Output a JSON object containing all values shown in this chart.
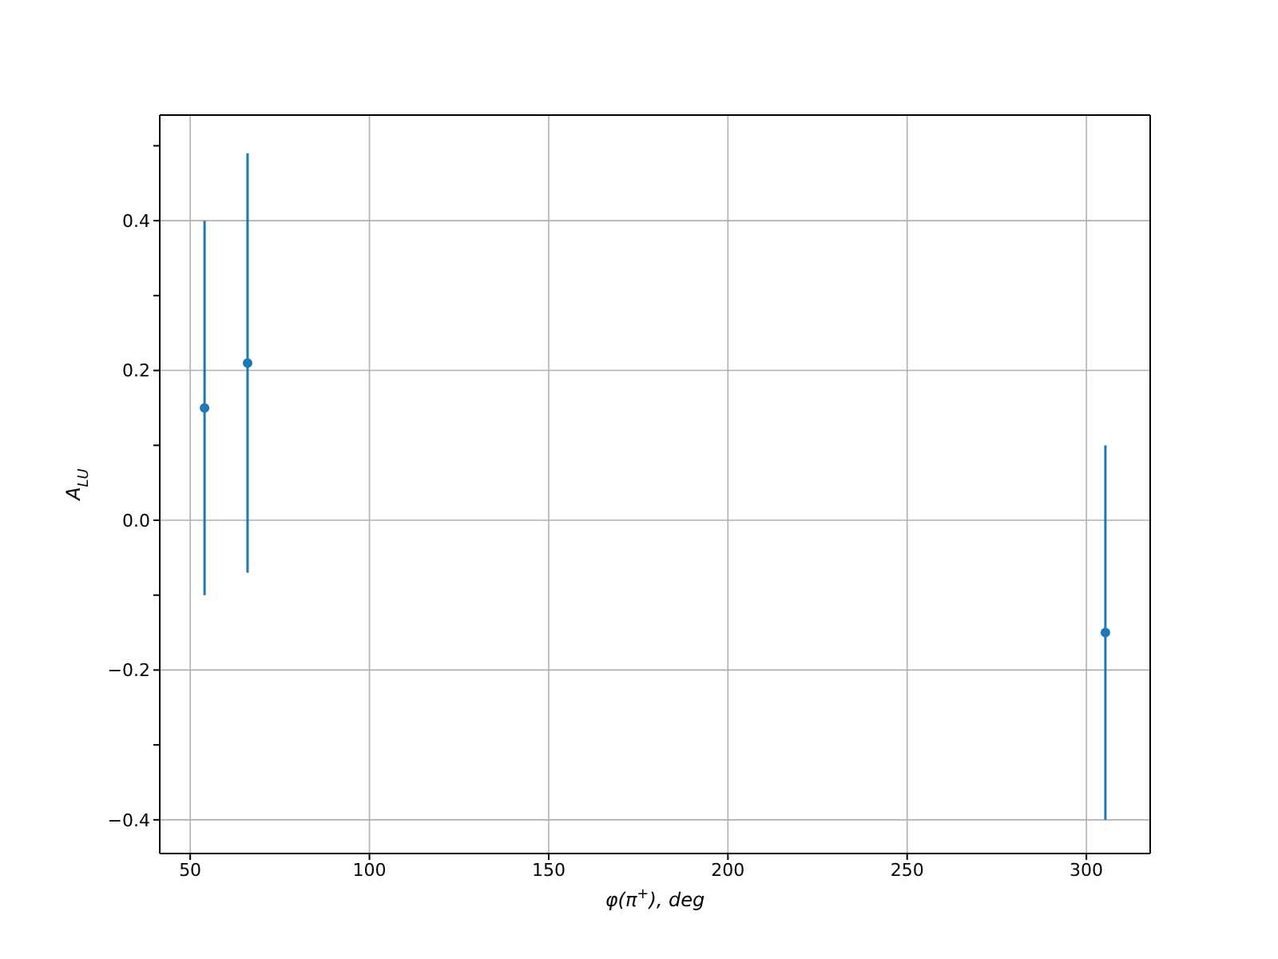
{
  "chart_data": {
    "type": "scatter",
    "xlabel": "φ(π$^{+}$), deg",
    "ylabel": "A$_{LU}$",
    "x": [
      54,
      66,
      305.3
    ],
    "series": [
      {
        "color": "#1f77b4",
        "values": [
          0.15,
          0.21,
          -0.15
        ],
        "errors": [
          0.25,
          0.28,
          0.25
        ]
      }
    ],
    "xlim": [
      41.5,
      317.8
    ],
    "xticks": [
      50,
      100,
      150,
      200,
      250,
      300
    ],
    "ylim": [
      -0.445,
      0.541
    ],
    "yticks": [
      {
        "value": -0.4,
        "label": "−0.4"
      },
      {
        "value": -0.3,
        "label": null
      },
      {
        "value": -0.2,
        "label": "−0.2"
      },
      {
        "value": -0.1,
        "label": null
      },
      {
        "value": 0,
        "label": "0.0"
      },
      {
        "value": 0.1,
        "label": null
      },
      {
        "value": 0.2,
        "label": "0.2"
      },
      {
        "value": 0.3,
        "label": null
      },
      {
        "value": 0.4,
        "label": "0.4"
      },
      {
        "value": 0.5,
        "label": null
      }
    ],
    "grid": true,
    "marker": "circle"
  }
}
